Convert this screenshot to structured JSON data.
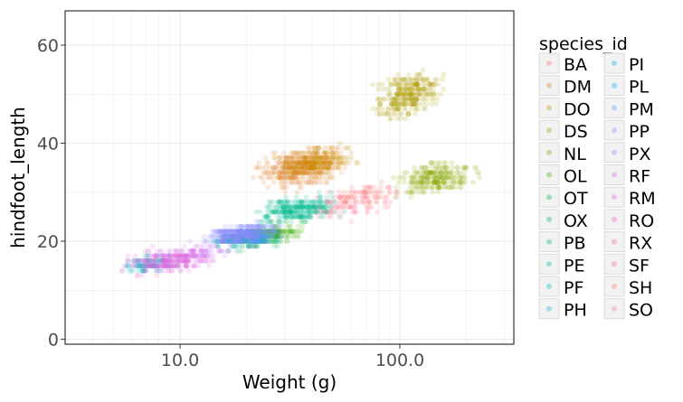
{
  "chart_data": {
    "type": "scatter",
    "title": "",
    "xlabel": "Weight (g)",
    "ylabel": "hindfoot_length",
    "xscale": "log10",
    "xlim": [
      3,
      330
    ],
    "ylim": [
      -1,
      67
    ],
    "xticks": [
      10,
      100
    ],
    "xtick_labels": [
      "10.0",
      "100.0"
    ],
    "yticks": [
      0,
      20,
      40,
      60
    ],
    "ytick_labels": [
      "0",
      "20",
      "40",
      "60"
    ],
    "grid": true,
    "point_alpha": 0.1,
    "legend": {
      "title": "species_id",
      "placement": "right"
    },
    "series": [
      {
        "name": "BA",
        "color": "#f8766d",
        "clusters": []
      },
      {
        "name": "DM",
        "color": "#e3852f",
        "clusters": [
          {
            "x_range": [
              20,
              62
            ],
            "y_range": [
              30,
              40
            ],
            "count": 420
          }
        ]
      },
      {
        "name": "DO",
        "color": "#cc9200",
        "clusters": [
          {
            "x_range": [
              25,
              70
            ],
            "y_range": [
              32,
              40
            ],
            "count": 220
          }
        ]
      },
      {
        "name": "DS",
        "color": "#b09e00",
        "clusters": [
          {
            "x_range": [
              70,
              170
            ],
            "y_range": [
              44,
              56
            ],
            "count": 320
          }
        ]
      },
      {
        "name": "NL",
        "color": "#86a800",
        "clusters": [
          {
            "x_range": [
              85,
              250
            ],
            "y_range": [
              29,
              37
            ],
            "count": 260
          }
        ]
      },
      {
        "name": "OL",
        "color": "#43b000",
        "clusters": [
          {
            "x_range": [
              17,
              40
            ],
            "y_range": [
              19,
              24
            ],
            "count": 140
          }
        ]
      },
      {
        "name": "OT",
        "color": "#00b53e",
        "clusters": [
          {
            "x_range": [
              14,
              35
            ],
            "y_range": [
              18,
              23
            ],
            "count": 140
          }
        ]
      },
      {
        "name": "OX",
        "color": "#00b86a",
        "clusters": []
      },
      {
        "name": "PB",
        "color": "#00bb8d",
        "clusters": [
          {
            "x_range": [
              20,
              60
            ],
            "y_range": [
              23,
              30
            ],
            "count": 300
          }
        ]
      },
      {
        "name": "PE",
        "color": "#00bda9",
        "clusters": [
          {
            "x_range": [
              12,
              32
            ],
            "y_range": [
              18,
              23
            ],
            "count": 140
          }
        ]
      },
      {
        "name": "PF",
        "color": "#00bcc3",
        "clusters": [
          {
            "x_range": [
              5,
              10
            ],
            "y_range": [
              13,
              18
            ],
            "count": 100
          }
        ]
      },
      {
        "name": "PH",
        "color": "#00b8da",
        "clusters": []
      },
      {
        "name": "PI",
        "color": "#00b1ee",
        "clusters": []
      },
      {
        "name": "PL",
        "color": "#00a6ff",
        "clusters": []
      },
      {
        "name": "PM",
        "color": "#5f97ff",
        "clusters": [
          {
            "x_range": [
              14,
              32
            ],
            "y_range": [
              18,
              24
            ],
            "count": 160
          }
        ]
      },
      {
        "name": "PP",
        "color": "#8f86ff",
        "clusters": [
          {
            "x_range": [
              12,
              30
            ],
            "y_range": [
              19,
              24
            ],
            "count": 260
          }
        ]
      },
      {
        "name": "PX",
        "color": "#b177ff",
        "clusters": []
      },
      {
        "name": "RF",
        "color": "#cb6ff2",
        "clusters": [
          {
            "x_range": [
              8,
              20
            ],
            "y_range": [
              15,
              20
            ],
            "count": 80
          }
        ]
      },
      {
        "name": "RM",
        "color": "#dd62e2",
        "clusters": [
          {
            "x_range": [
              5,
              16
            ],
            "y_range": [
              13,
              19
            ],
            "count": 260
          }
        ]
      },
      {
        "name": "RO",
        "color": "#ec5bc6",
        "clusters": []
      },
      {
        "name": "RX",
        "color": "#f663a8",
        "clusters": []
      },
      {
        "name": "SF",
        "color": "#fd6988",
        "clusters": [
          {
            "x_range": [
              35,
              120
            ],
            "y_range": [
              24,
              32
            ],
            "count": 90
          }
        ]
      },
      {
        "name": "SH",
        "color": "#ff7267",
        "clusters": [
          {
            "x_range": [
              40,
              110
            ],
            "y_range": [
              26,
              33
            ],
            "count": 60
          }
        ]
      },
      {
        "name": "SO",
        "color": "#f27b8f",
        "clusters": []
      }
    ]
  }
}
